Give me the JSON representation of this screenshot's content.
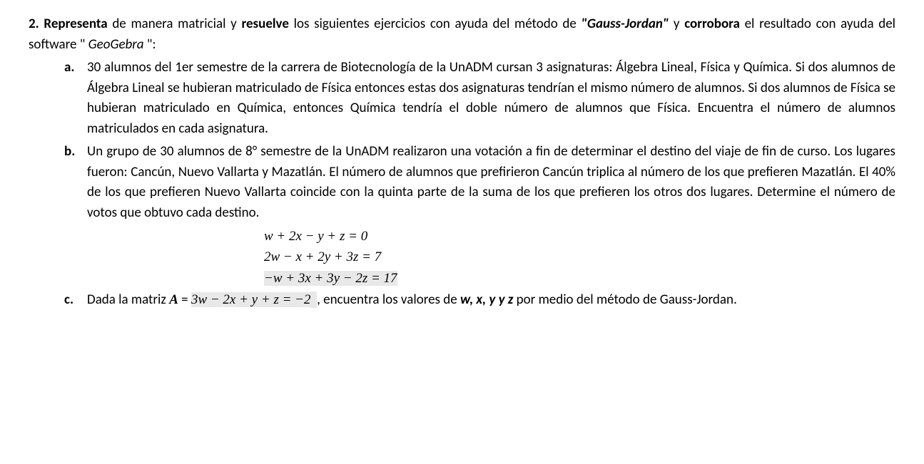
{
  "problem": {
    "number": "2.",
    "intro_part1": "Representa",
    "intro_part2": " de manera matricial y ",
    "intro_part3": "resuelve",
    "intro_part4": " los siguientes ejercicios con ayuda del método de ",
    "intro_part5": "\"Gauss-Jordan\"",
    "intro_part6": " y ",
    "intro_part7": "corrobora",
    "intro_part8": " el resultado con ayuda del software \"",
    "intro_part9": "GeoGebra",
    "intro_part10": "\":"
  },
  "items": {
    "a": {
      "marker": "a.",
      "text": "30 alumnos del 1er semestre de la carrera de Biotecnología de la UnADM cursan 3 asignaturas: Álgebra Lineal, Física y Química. Si dos alumnos de Álgebra Lineal se hubieran matriculado de Física entonces estas dos asignaturas tendrían el mismo número de alumnos. Si dos alumnos de Física se hubieran matriculado en Química, entonces Química tendría el doble número de alumnos que Física. Encuentra el número de alumnos matriculados en cada asignatura."
    },
    "b": {
      "marker": "b.",
      "text": "Un grupo de 30 alumnos de 8° semestre de la UnADM realizaron una votación a fin de determinar el destino del viaje de fin de curso. Los lugares fueron: Cancún, Nuevo Vallarta y Mazatlán. El número de alumnos que prefirieron Cancún triplica al número de los que prefieren Mazatlán. El 40% de los que prefieren Nuevo Vallarta coincide con la quinta parte de la suma de los que prefieren los otros dos lugares. Determine el número de votos que obtuvo cada destino."
    },
    "c": {
      "marker": "c.",
      "text_before": "Dada la matriz ",
      "matrix_label": "A",
      "equals": " = ",
      "text_after": ", encuentra los valores de ",
      "vars": "w, x, y y z",
      "text_end": " por medio del método de Gauss-Jordan."
    }
  },
  "equations": {
    "eq1": "w + 2x − y + z = 0",
    "eq2": "2w − x + 2y + 3z = 7",
    "eq3": "−w + 3x + 3y − 2z = 17",
    "eq4": "3w − 2x + y + z = −2"
  }
}
